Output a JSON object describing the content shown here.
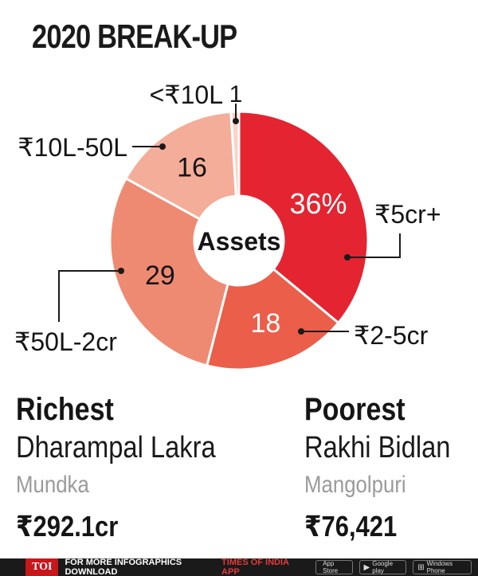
{
  "title": "2020 BREAK-UP",
  "chart_data": {
    "type": "pie",
    "center_label": "Assets",
    "slices": [
      {
        "label": "₹5cr+",
        "value": 36,
        "value_text": "36%",
        "color": "#e42430"
      },
      {
        "label": "₹2-5cr",
        "value": 18,
        "value_text": "18",
        "color": "#eb5e4a"
      },
      {
        "label": "₹50L-2cr",
        "value": 29,
        "value_text": "29",
        "color": "#ef8a72"
      },
      {
        "label": "₹10L-50L",
        "value": 16,
        "value_text": "16",
        "color": "#f4ad98"
      },
      {
        "label": "<₹10L",
        "value": 1,
        "value_text": "1",
        "color": "#f8d3c6"
      }
    ]
  },
  "richest": {
    "heading": "Richest",
    "name": "Dharampal Lakra",
    "area": "Mundka",
    "amount": "₹292.1cr"
  },
  "poorest": {
    "heading": "Poorest",
    "name": "Rakhi Bidlan",
    "area": "Mangolpuri",
    "amount": "₹76,421"
  },
  "footer": {
    "logo": "TOI",
    "cta": "FOR MORE  INFOGRAPHICS DOWNLOAD",
    "brand": "TIMES OF INDIA  APP",
    "stores": [
      {
        "icon": "apple-icon",
        "glyph": "",
        "label": "App Store"
      },
      {
        "icon": "play-icon",
        "glyph": "▶",
        "label": "Google play"
      },
      {
        "icon": "windows-icon",
        "glyph": "⊞",
        "label": "Windows Phone"
      }
    ]
  }
}
